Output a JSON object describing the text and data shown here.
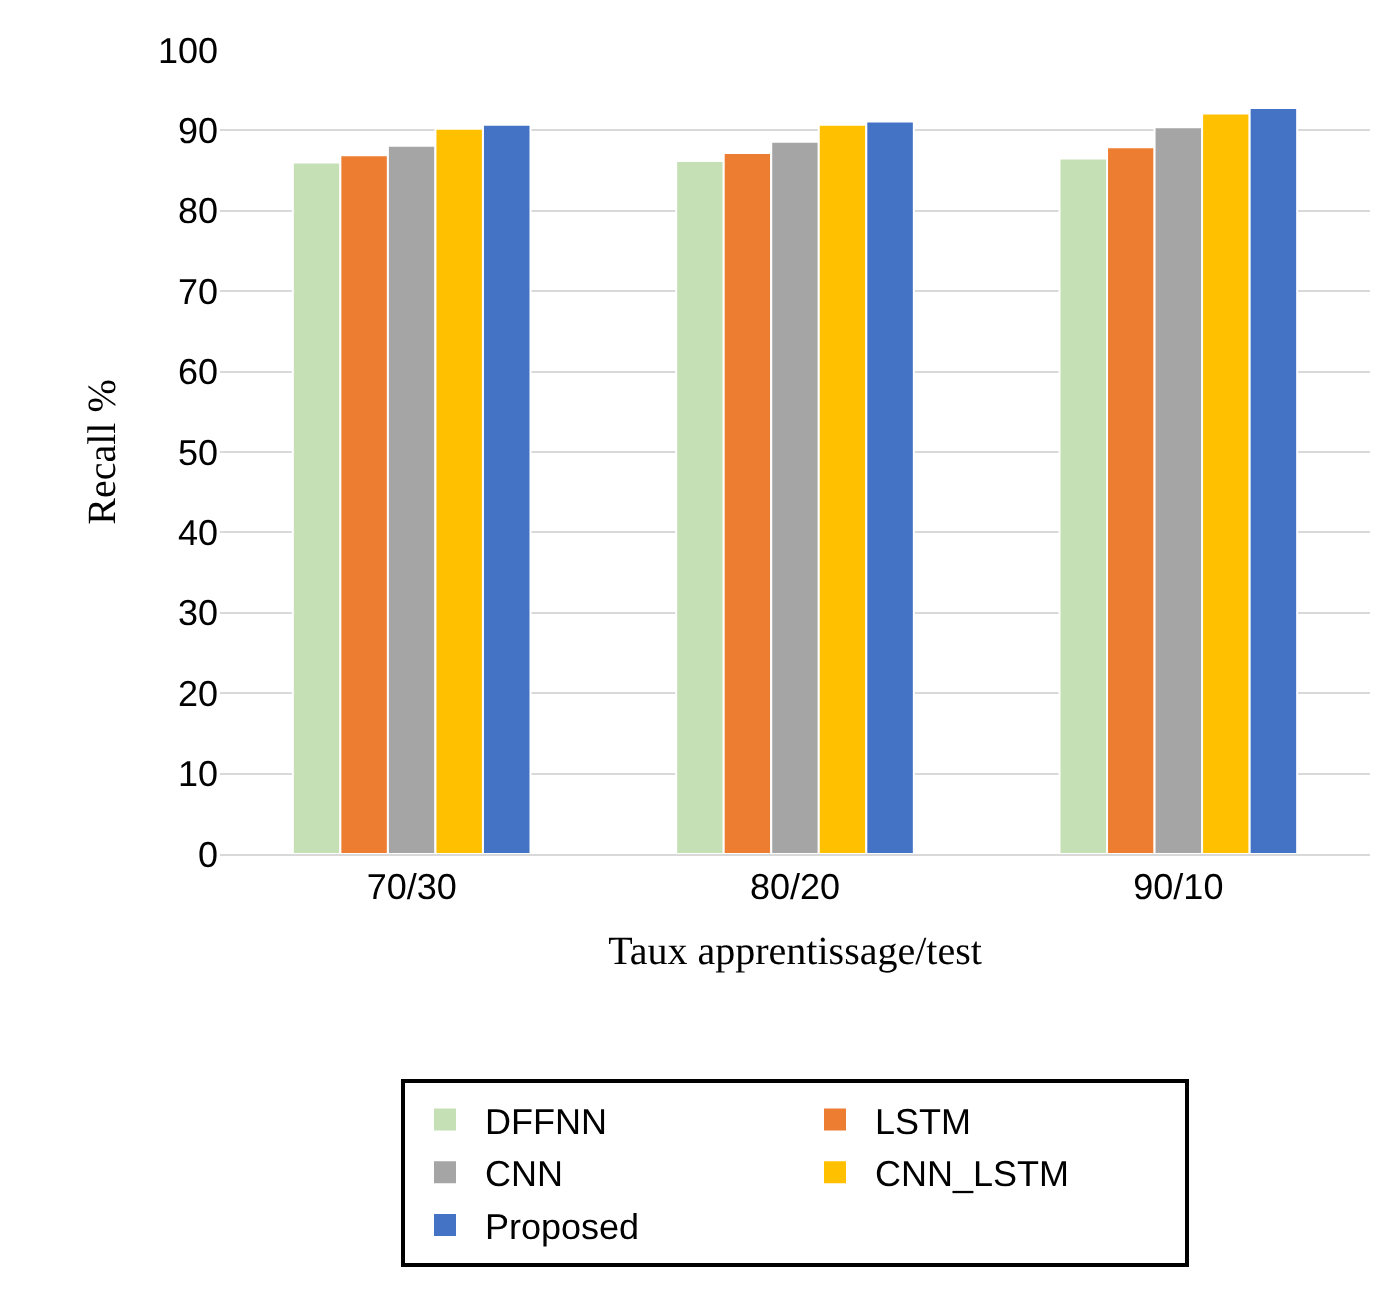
{
  "chart_data": {
    "type": "bar",
    "xlabel": "Taux apprentissage/test",
    "ylabel": "Recall %",
    "categories": [
      "70/30",
      "80/20",
      "90/10"
    ],
    "series": [
      {
        "name": "DFFNN",
        "color": "#c5e0b4",
        "values": [
          86.0,
          86.2,
          86.5
        ]
      },
      {
        "name": "LSTM",
        "color": "#ed7d31",
        "values": [
          86.9,
          87.2,
          87.9
        ]
      },
      {
        "name": "CNN",
        "color": "#a5a5a5",
        "values": [
          88.1,
          88.6,
          90.4
        ]
      },
      {
        "name": "CNN_LSTM",
        "color": "#ffc000",
        "values": [
          90.2,
          90.7,
          92.1
        ]
      },
      {
        "name": "Proposed",
        "color": "#4472c4",
        "values": [
          90.7,
          91.1,
          92.8
        ]
      }
    ],
    "ylim": [
      0,
      100
    ],
    "yticks": [
      0,
      10,
      20,
      30,
      40,
      50,
      60,
      70,
      80,
      90,
      100
    ],
    "grid": "y",
    "legend": "bottom"
  }
}
